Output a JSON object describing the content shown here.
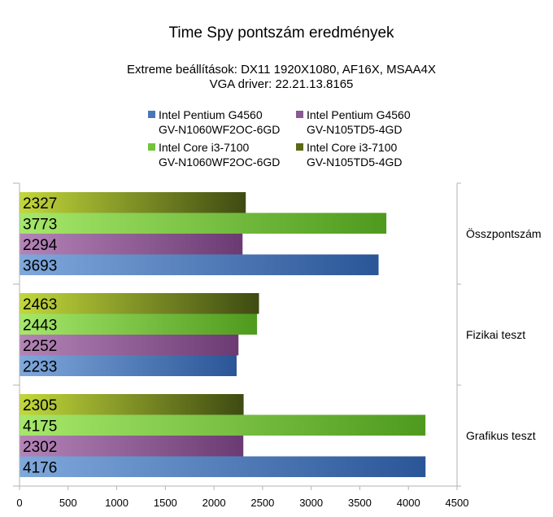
{
  "chart_data": {
    "type": "bar",
    "orientation": "horizontal",
    "title": "Time Spy pontszám eredmények",
    "subtitle": [
      "Extreme beállítások: DX11 1920X1080, AF16X, MSAA4X",
      "VGA driver: 22.21.13.8165"
    ],
    "categories": [
      "Összpontszám",
      "Fizikai teszt",
      "Grafikus teszt"
    ],
    "series": [
      {
        "name": [
          "Intel Pentium G4560",
          "GV-N1060WF2OC-6GD"
        ],
        "values": [
          3693,
          2233,
          4176
        ],
        "color_light": "#7FA8DC",
        "color_dark": "#2A5597"
      },
      {
        "name": [
          "Intel Pentium G4560",
          "GV-N105TD5-4GD"
        ],
        "values": [
          2294,
          2252,
          2302
        ],
        "color_light": "#B484B8",
        "color_dark": "#6B3A72"
      },
      {
        "name": [
          "Intel Core i3-7100",
          "GV-N1060WF2OC-6GD"
        ],
        "values": [
          3773,
          2443,
          4175
        ],
        "color_light": "#A6E86A",
        "color_dark": "#4E9A1E"
      },
      {
        "name": [
          "Intel Core i3-7100",
          "GV-N105TD5-4GD"
        ],
        "values": [
          2327,
          2463,
          2305
        ],
        "color_light": "#C2D83A",
        "color_dark": "#3E4A12"
      }
    ],
    "xlim": [
      0,
      4500
    ],
    "xticks": [
      0,
      500,
      1000,
      1500,
      2000,
      2500,
      3000,
      3500,
      4000,
      4500
    ],
    "legend_position": "top",
    "grid": false
  }
}
